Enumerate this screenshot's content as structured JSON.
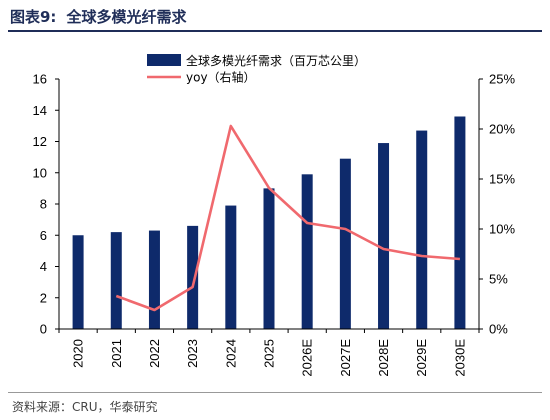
{
  "header": {
    "figure_no": "图表9:",
    "title": "全球多模光纤需求"
  },
  "source": "资料来源：CRU，华泰研究",
  "chart_data": {
    "type": "bar",
    "categories": [
      "2020",
      "2021",
      "2022",
      "2023",
      "2024",
      "2025",
      "2026E",
      "2027E",
      "2028E",
      "2029E",
      "2030E"
    ],
    "series": [
      {
        "name": "全球多模光纤需求（百万芯公里）",
        "type": "bar",
        "axis": "left",
        "color": "#0e2a6b",
        "values": [
          6.0,
          6.2,
          6.3,
          6.6,
          7.9,
          9.0,
          9.9,
          10.9,
          11.9,
          12.7,
          13.6
        ]
      },
      {
        "name": "yoy（右轴）",
        "type": "line",
        "axis": "right",
        "color": "#f0696e",
        "values": [
          null,
          3.3,
          1.9,
          4.2,
          20.3,
          14.1,
          10.6,
          10.0,
          8.0,
          7.3,
          7.0
        ]
      }
    ],
    "ylim_left": [
      0,
      16
    ],
    "yticks_left": [
      "0",
      "2",
      "4",
      "6",
      "8",
      "10",
      "12",
      "14",
      "16"
    ],
    "ylim_right": [
      0,
      25
    ],
    "yticks_right": [
      "0%",
      "5%",
      "10%",
      "15%",
      "20%",
      "25%"
    ],
    "legend_position": "top-center",
    "grid": false
  }
}
